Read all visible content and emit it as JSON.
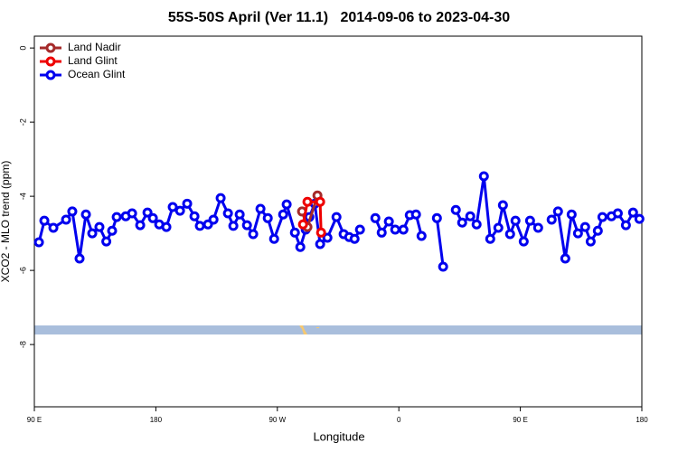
{
  "chart_data": {
    "type": "line",
    "title": "55S-50S April (Ver 11.1)   2014-09-06 to 2023-04-30",
    "xlabel": "Longitude",
    "ylabel": "XCO2 - MLO trend (ppm)",
    "xlim": [
      90,
      540
    ],
    "xticks": [
      {
        "value": 90,
        "label": "90 E"
      },
      180,
      {
        "value": 270,
        "label": "90 W"
      },
      {
        "value": 360,
        "label": "0"
      },
      {
        "value": 450,
        "label": "90 E"
      },
      {
        "value": 540,
        "label": "180"
      }
    ],
    "ylim": [
      -9.68,
      0.32
    ],
    "yticks": [
      0,
      -2,
      -4,
      -6,
      -8
    ],
    "legend": "top-left",
    "series": [
      {
        "name": "Land Nadir",
        "color": "#a52a2a",
        "x": [
          288.3,
          292.3,
          299.7
        ],
        "values": [
          -4.41,
          -4.83,
          -3.98
        ]
      },
      {
        "name": "Land Glint",
        "color": "#ee0000",
        "x": [
          289.0,
          292.3,
          301.7,
          302.4
        ],
        "values": [
          -4.76,
          -4.15,
          -4.15,
          -4.98
        ]
      },
      {
        "name": "Ocean Glint",
        "color": "#0000ee",
        "x": [
          93.4,
          97.4,
          104.1,
          113.5,
          118.1,
          123.5,
          128.2,
          132.9,
          138.2,
          143.3,
          147.6,
          151.0,
          157.7,
          162.4,
          168.4,
          173.8,
          177.8,
          182.5,
          187.8,
          192.5,
          197.9,
          203.2,
          208.6,
          212.6,
          218.6,
          222.7,
          228.0,
          233.4,
          237.4,
          242.1,
          247.5,
          252.1,
          257.5,
          262.9,
          267.6,
          274.3,
          276.9,
          283.0,
          287.0,
          291.0,
          293.7,
          297.7,
          301.7,
          307.1,
          313.8,
          319.1,
          323.2,
          327.2,
          331.2,
          null,
          342.6,
          347.3,
          352.6,
          357.3,
          363.4,
          368.1,
          372.7,
          376.8,
          null,
          388.2,
          392.8,
          null,
          402.2,
          406.9,
          412.9,
          417.6,
          423.0,
          427.7,
          433.7,
          437.1,
          442.4,
          446.4,
          452.5,
          457.2,
          463.2,
          null,
          473.2,
          477.9,
          483.3,
          488.0,
          492.7,
          498.0,
          502.1,
          507.4,
          510.8,
          517.5,
          522.2,
          528.2,
          533.5,
          538.2
        ],
        "values": [
          -5.24,
          -4.66,
          -4.85,
          -4.63,
          -4.41,
          -5.68,
          -4.49,
          -5.0,
          -4.83,
          -5.22,
          -4.93,
          -4.56,
          -4.54,
          -4.46,
          -4.78,
          -4.44,
          -4.59,
          -4.76,
          -4.83,
          -4.29,
          -4.39,
          -4.2,
          -4.54,
          -4.8,
          -4.76,
          -4.63,
          -4.05,
          -4.46,
          -4.8,
          -4.49,
          -4.78,
          -5.02,
          -4.34,
          -4.59,
          -5.15,
          -4.49,
          -4.22,
          -4.98,
          -5.37,
          -4.9,
          -4.56,
          -4.2,
          -5.29,
          -5.12,
          -4.56,
          -5.02,
          -5.1,
          -5.15,
          -4.9,
          null,
          -4.59,
          -4.98,
          -4.68,
          -4.9,
          -4.9,
          -4.51,
          -4.49,
          -5.07,
          null,
          -4.59,
          -5.9,
          null,
          -4.37,
          -4.71,
          -4.54,
          -4.76,
          -3.46,
          -5.15,
          -4.85,
          -4.24,
          -5.02,
          -4.66,
          -5.22,
          -4.66,
          -4.85,
          null,
          -4.63,
          -4.41,
          -5.68,
          -4.49,
          -5.0,
          -4.83,
          -5.22,
          -4.93,
          -4.56,
          -4.54,
          -4.46,
          -4.78,
          -4.44,
          -4.61
        ]
      }
    ]
  }
}
